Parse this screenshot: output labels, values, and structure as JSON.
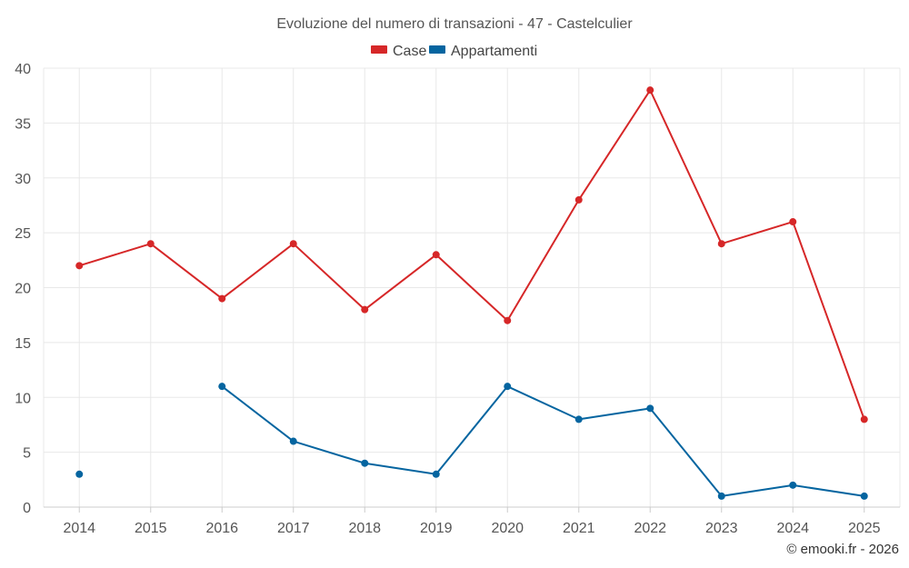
{
  "chart_data": {
    "type": "line",
    "title": "Evoluzione del numero di transazioni - 47 - Castelculier",
    "categories": [
      "2014",
      "2015",
      "2016",
      "2017",
      "2018",
      "2019",
      "2020",
      "2021",
      "2022",
      "2023",
      "2024",
      "2025"
    ],
    "ylim": [
      0,
      40
    ],
    "yticks": [
      0,
      5,
      10,
      15,
      20,
      25,
      30,
      35,
      40
    ],
    "grid": true,
    "legend_position": "top-center",
    "series": [
      {
        "name": "Case",
        "color": "#d62728",
        "values": [
          22,
          24,
          19,
          24,
          18,
          23,
          17,
          28,
          38,
          24,
          26,
          8
        ]
      },
      {
        "name": "Appartamenti",
        "color": "#0565a0",
        "values": [
          3,
          null,
          11,
          6,
          4,
          3,
          11,
          8,
          9,
          1,
          2,
          1
        ]
      }
    ],
    "credit": "© emooki.fr - 2026"
  }
}
